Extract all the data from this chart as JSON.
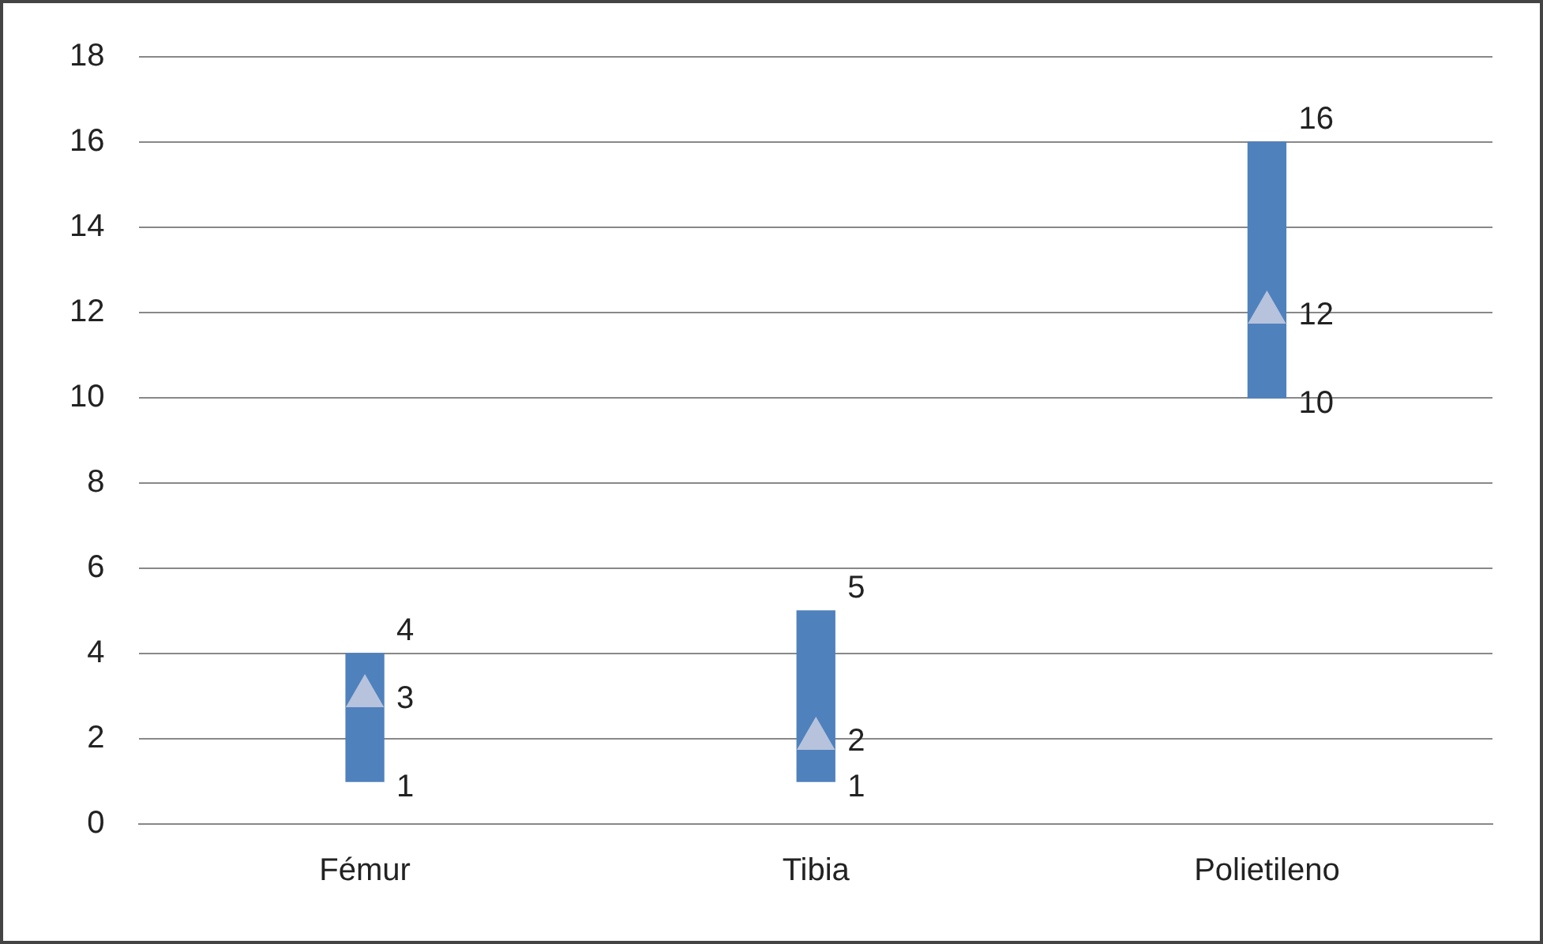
{
  "chart_data": {
    "type": "bar",
    "categories": [
      "Fémur",
      "Tibia",
      "Polietileno"
    ],
    "series": [
      {
        "color": "#4f81bd",
        "base": [
          1,
          1,
          10
        ],
        "values": [
          3,
          4,
          6
        ]
      },
      {
        "type": "scatter",
        "color": "#b7c3dc",
        "marker": "triangle",
        "values": [
          3,
          2,
          12
        ]
      }
    ],
    "ylim": [
      0,
      18
    ],
    "yticks": [
      0,
      2,
      4,
      6,
      8,
      10,
      12,
      14,
      16,
      18
    ],
    "grid": "y",
    "legend": false,
    "annotations": [
      {
        "text": "4",
        "x": "Fémur",
        "y": 4
      },
      {
        "text": "3",
        "x": "Fémur",
        "y": 3
      },
      {
        "text": "1",
        "x": "Fémur",
        "y": 1
      },
      {
        "text": "5",
        "x": "Tibia",
        "y": 5
      },
      {
        "text": "2",
        "x": "Tibia",
        "y": 2
      },
      {
        "text": "1",
        "x": "Tibia",
        "y": 1
      },
      {
        "text": "16",
        "x": "Polietileno",
        "y": 16
      },
      {
        "text": "12",
        "x": "Polietileno",
        "y": 12
      },
      {
        "text": "10",
        "x": "Polietileno",
        "y": 10
      }
    ]
  }
}
